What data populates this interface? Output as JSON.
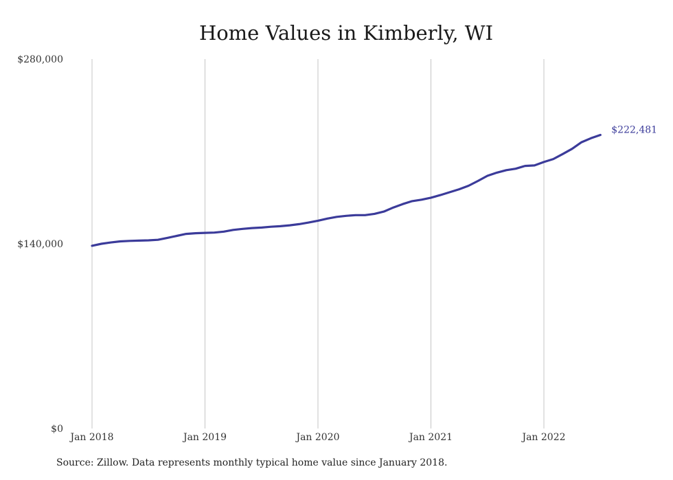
{
  "chart_data": {
    "type": "line",
    "title": "Home Values in Kimberly, WI",
    "xlabel": "",
    "ylabel": "",
    "ylim": [
      0,
      280000
    ],
    "y_ticks": [
      {
        "value": 0,
        "label": "$0"
      },
      {
        "value": 140000,
        "label": "$140,000"
      },
      {
        "value": 280000,
        "label": "$280,000"
      }
    ],
    "x_ticks": [
      {
        "value": "2018-01",
        "label": "Jan 2018"
      },
      {
        "value": "2019-01",
        "label": "Jan 2019"
      },
      {
        "value": "2020-01",
        "label": "Jan 2020"
      },
      {
        "value": "2021-01",
        "label": "Jan 2021"
      },
      {
        "value": "2022-01",
        "label": "Jan 2022"
      }
    ],
    "grid": "vertical",
    "line_color": "#3b3b9a",
    "series": [
      {
        "x": [
          "2018-01",
          "2018-02",
          "2018-03",
          "2018-04",
          "2018-05",
          "2018-06",
          "2018-07",
          "2018-08",
          "2018-09",
          "2018-10",
          "2018-11",
          "2018-12",
          "2019-01",
          "2019-02",
          "2019-03",
          "2019-04",
          "2019-05",
          "2019-06",
          "2019-07",
          "2019-08",
          "2019-09",
          "2019-10",
          "2019-11",
          "2019-12",
          "2020-01",
          "2020-02",
          "2020-03",
          "2020-04",
          "2020-05",
          "2020-06",
          "2020-07",
          "2020-08",
          "2020-09",
          "2020-10",
          "2020-11",
          "2020-12",
          "2021-01",
          "2021-02",
          "2021-03",
          "2021-04",
          "2021-05",
          "2021-06",
          "2021-07",
          "2021-08",
          "2021-09",
          "2021-10",
          "2021-11",
          "2021-12",
          "2022-01",
          "2022-02",
          "2022-03",
          "2022-04",
          "2022-05",
          "2022-06",
          "2022-07"
        ],
        "values": [
          138500,
          140000,
          141000,
          141800,
          142200,
          142400,
          142600,
          143000,
          144500,
          146000,
          147500,
          148000,
          148300,
          148500,
          149200,
          150500,
          151300,
          151900,
          152300,
          152900,
          153300,
          154000,
          154900,
          156100,
          157500,
          159100,
          160400,
          161200,
          161700,
          161700,
          162700,
          164400,
          167500,
          170100,
          172300,
          173400,
          174900,
          176900,
          179100,
          181300,
          184000,
          187600,
          191500,
          193900,
          195800,
          196900,
          199000,
          199400,
          202000,
          204200,
          208000,
          212000,
          217000,
          220000,
          222481
        ]
      }
    ],
    "end_label": "$222,481",
    "source": "Source: Zillow. Data represents monthly typical home value since January 2018."
  }
}
